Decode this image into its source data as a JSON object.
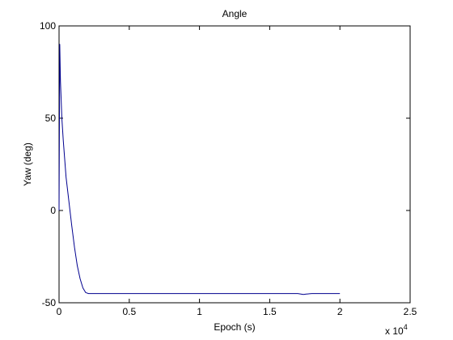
{
  "chart_data": {
    "type": "line",
    "title": "Angle",
    "xlabel": "Epoch (s)",
    "ylabel": "Yaw (deg)",
    "x_multiplier_label": "x 10",
    "x_multiplier_exponent": "4",
    "xlim": [
      0,
      25000
    ],
    "ylim": [
      -50,
      100
    ],
    "x_ticks": [
      0,
      5000,
      10000,
      15000,
      20000,
      25000
    ],
    "x_tick_labels": [
      "0",
      "0.5",
      "1",
      "1.5",
      "2",
      "2.5"
    ],
    "y_ticks": [
      -50,
      0,
      50,
      100
    ],
    "y_tick_labels": [
      "-50",
      "0",
      "50",
      "100"
    ],
    "grid": false,
    "legend": "none",
    "series": [
      {
        "color": "#00008f",
        "x": [
          0,
          50,
          100,
          200,
          300,
          400,
          500,
          700,
          900,
          1100,
          1300,
          1500,
          1700,
          1900,
          2100,
          2500,
          3000,
          5000,
          8000,
          10000,
          12000,
          15000,
          16000,
          17000,
          17400,
          17600,
          18000,
          20000
        ],
        "y": [
          0,
          90,
          70,
          50,
          38,
          28,
          18,
          5,
          -8,
          -20,
          -30,
          -37,
          -42,
          -44.5,
          -45,
          -45,
          -45,
          -45,
          -45,
          -45,
          -45,
          -45,
          -45,
          -45,
          -45.5,
          -45.3,
          -45,
          -45
        ]
      }
    ]
  }
}
